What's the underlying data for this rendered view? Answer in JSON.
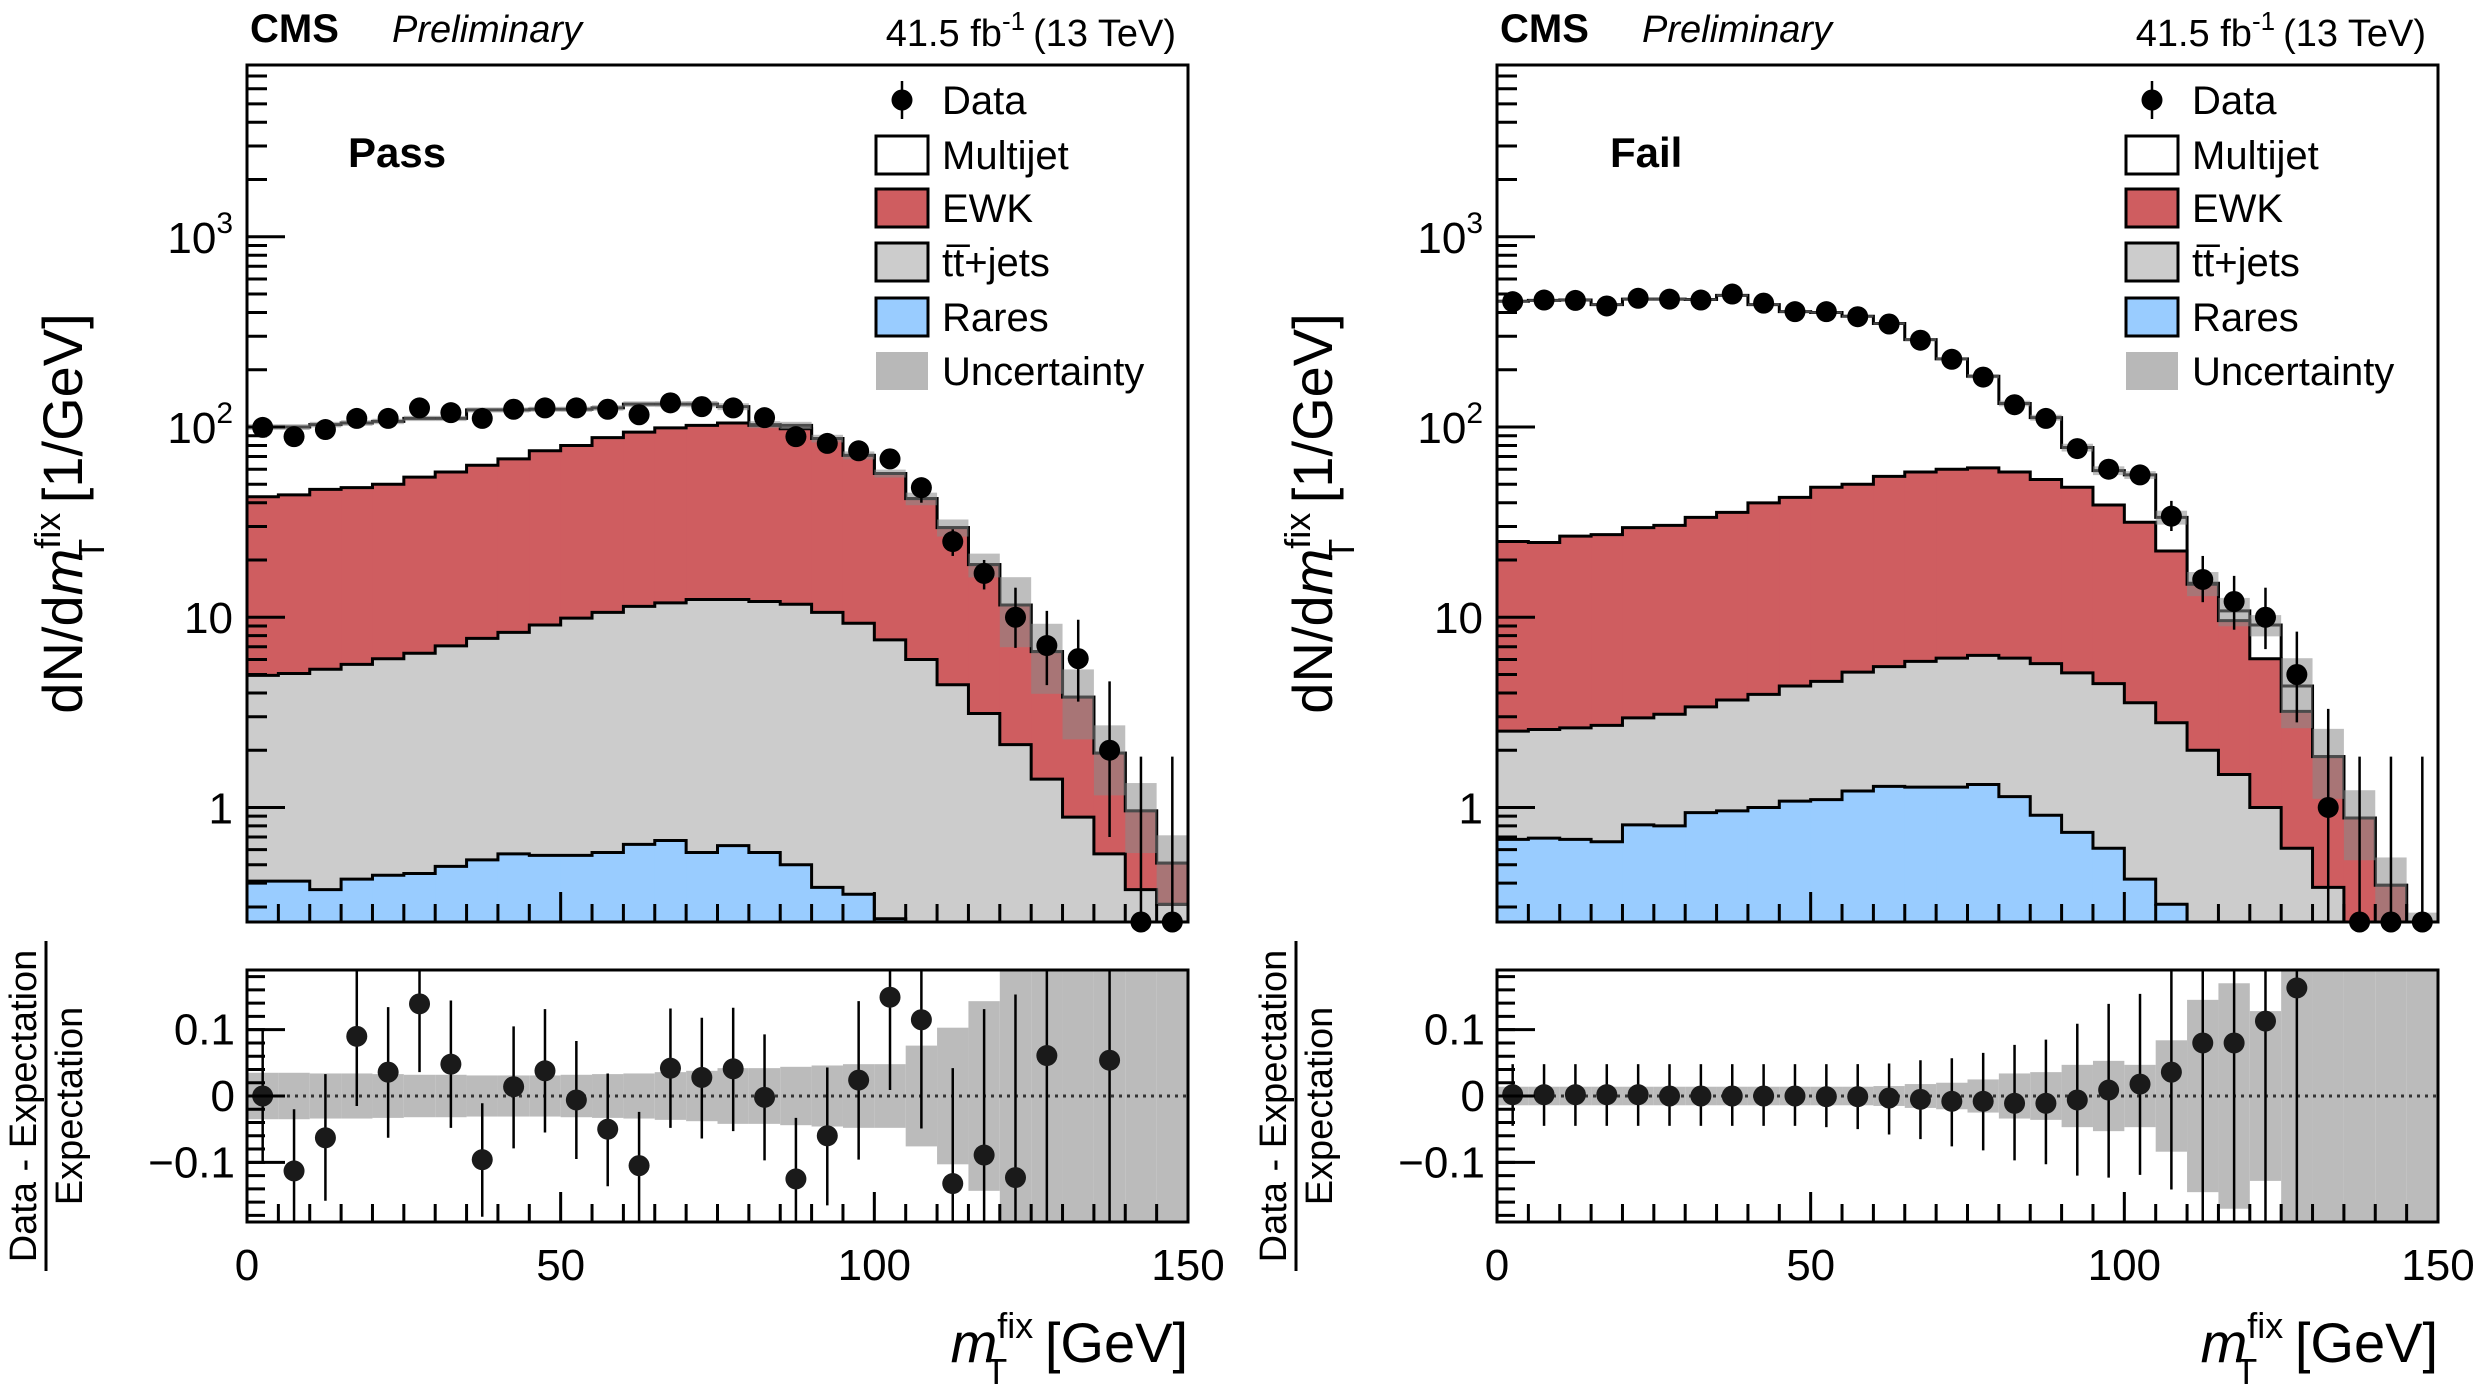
{
  "header": {
    "experiment": "CMS",
    "status": "Preliminary",
    "lumi_value": "41.5 fb",
    "lumi_exp": "-1",
    "energy": "(13 TeV)"
  },
  "colors": {
    "multijet": "#ffffff",
    "ewk": "#cf5d60",
    "ttbar": "#cccccc",
    "rares": "#99ccff",
    "uncertainty": "#888888",
    "data": "#000000"
  },
  "legend": [
    {
      "key": "data",
      "label": "Data",
      "style": "marker"
    },
    {
      "key": "multijet",
      "label": "Multijet",
      "style": "box"
    },
    {
      "key": "ewk",
      "label": "EWK",
      "style": "box"
    },
    {
      "key": "ttbar",
      "label": "tt̅+jets",
      "style": "box"
    },
    {
      "key": "rares",
      "label": "Rares",
      "style": "box"
    },
    {
      "key": "uncertainty",
      "label": "Uncertainty",
      "style": "band"
    }
  ],
  "axes": {
    "y_main_title_prefix": "dN/d",
    "y_main_title_var": "m",
    "y_main_title_sup": "fix",
    "y_main_title_sub": "T",
    "y_main_title_suffix": " [1/GeV]",
    "y_ratio_numerator": "Data - Expectation",
    "y_ratio_denominator": "Expectation",
    "x_title_var": "m",
    "x_title_sup": "fix",
    "x_title_sub": "T",
    "x_title_suffix": " [GeV]",
    "y_main_ticks": [
      {
        "value": 1,
        "label": "1"
      },
      {
        "value": 10,
        "label": "10"
      },
      {
        "value": 100,
        "label": "10",
        "exp": "2"
      },
      {
        "value": 1000,
        "label": "10",
        "exp": "3"
      }
    ],
    "y_ratio_ticks": [
      {
        "value": 0.1,
        "label": "0.1"
      },
      {
        "value": 0,
        "label": "0"
      },
      {
        "value": -0.1,
        "label": "−0.1"
      }
    ],
    "x_ticks": [
      {
        "value": 0,
        "label": "0"
      },
      {
        "value": 50,
        "label": "50"
      },
      {
        "value": 100,
        "label": "100"
      },
      {
        "value": 150,
        "label": "150"
      }
    ]
  },
  "chart_data": [
    {
      "type": "bar",
      "subtype": "stacked-histogram-with-ratio",
      "region": "Pass",
      "title": "CMS Preliminary, 41.5 fb^-1 (13 TeV)",
      "xlabel": "m_T^fix [GeV]",
      "ylabel": "dN/dm_T^fix [1/GeV]",
      "ratio_ylabel": "(Data - Expectation)/Expectation",
      "yscale": "log",
      "xlim": [
        0,
        150
      ],
      "ylim": [
        0.25,
        8000
      ],
      "ratio_ylim": [
        -0.19,
        0.19
      ],
      "bin_edges_start": 0,
      "bin_width": 5,
      "legend_position": "top-right",
      "stack_top_total": [
        100,
        100,
        103,
        105,
        107,
        111,
        111,
        123,
        123,
        124,
        124,
        126,
        132,
        132,
        132,
        128,
        103,
        102,
        87,
        71,
        57,
        42,
        29.6,
        18.9,
        11.6,
        6.6,
        3.8,
        1.93,
        0.96,
        0.51
      ],
      "stack_top_ewk": [
        43,
        44,
        47,
        48,
        50,
        54.5,
        58,
        63,
        68,
        75,
        80,
        88,
        94,
        99,
        102,
        105,
        102,
        98,
        87,
        71,
        57,
        42,
        29.6,
        18.9,
        11.6,
        6.6,
        3.8,
        1.93,
        0.96,
        0.51
      ],
      "stack_top_ttbar": [
        4.95,
        5.06,
        5.33,
        5.65,
        6.05,
        6.47,
        7.07,
        7.74,
        8.33,
        9.1,
        9.9,
        10.6,
        11.4,
        11.9,
        12.4,
        12.4,
        12.1,
        11.7,
        10.6,
        9.3,
        7.6,
        6.0,
        4.42,
        3.12,
        2.14,
        1.41,
        0.89,
        0.57,
        0.37,
        0.31
      ],
      "stack_top_rares": [
        0.41,
        0.41,
        0.37,
        0.42,
        0.44,
        0.45,
        0.49,
        0.53,
        0.57,
        0.56,
        0.56,
        0.58,
        0.64,
        0.67,
        0.58,
        0.63,
        0.58,
        0.5,
        0.38,
        0.35,
        0.26,
        0.2,
        0.2,
        0.2,
        0.2,
        0.2,
        0.2,
        0.2,
        0.2,
        0.2
      ],
      "data": [
        99.5,
        89,
        97,
        111,
        111,
        126,
        119,
        111,
        124,
        126,
        126,
        124,
        116,
        134,
        128,
        126,
        112,
        89,
        82,
        75,
        68,
        48,
        25,
        17,
        10,
        7.1,
        6.06,
        2.0,
        0,
        0
      ],
      "data_lo": [
        99.5,
        89,
        97,
        111,
        111,
        126,
        119,
        111,
        124,
        126,
        126,
        124,
        116,
        134,
        128,
        126,
        112,
        89,
        82,
        75,
        68,
        40,
        21,
        14,
        6.9,
        4.4,
        3.6,
        0.7,
        0,
        0
      ],
      "data_hi": [
        99.5,
        89,
        97,
        111,
        111,
        126,
        119,
        111,
        124,
        126,
        126,
        124,
        116,
        134,
        128,
        126,
        112,
        89,
        82,
        75,
        68,
        54,
        29,
        20,
        14.3,
        10.8,
        9.7,
        4.6,
        1.85,
        1.85
      ],
      "ratio": [
        0.0,
        -0.113,
        -0.063,
        0.09,
        0.036,
        0.139,
        0.048,
        -0.096,
        0.014,
        0.038,
        -0.006,
        -0.05,
        -0.105,
        0.042,
        0.028,
        0.041,
        -0.002,
        -0.125,
        -0.06,
        0.024,
        0.149,
        0.115,
        -0.132,
        -0.089,
        -0.123,
        0.061,
        null,
        0.054,
        null,
        null
      ],
      "ratio_lo": [
        -0.1,
        -0.19,
        -0.158,
        -0.015,
        -0.063,
        0.036,
        -0.048,
        -0.182,
        -0.079,
        -0.055,
        -0.095,
        -0.136,
        -0.19,
        -0.048,
        -0.064,
        -0.053,
        -0.097,
        -0.19,
        -0.165,
        -0.096,
        0.009,
        -0.049,
        -0.19,
        -0.19,
        -0.19,
        -0.19,
        null,
        -0.19,
        null,
        null
      ],
      "ratio_hi": [
        0.102,
        -0.02,
        0.033,
        0.189,
        0.134,
        0.189,
        0.144,
        -0.011,
        0.105,
        0.131,
        0.083,
        0.034,
        -0.024,
        0.132,
        0.118,
        0.133,
        0.093,
        -0.033,
        0.043,
        0.143,
        0.189,
        0.189,
        0.042,
        0.131,
        0.153,
        0.19,
        null,
        0.19,
        null,
        null
      ],
      "uncertainty_rel": [
        0.035,
        0.035,
        0.034,
        0.034,
        0.033,
        0.032,
        0.032,
        0.031,
        0.031,
        0.031,
        0.032,
        0.033,
        0.034,
        0.036,
        0.038,
        0.042,
        0.042,
        0.044,
        0.046,
        0.048,
        0.048,
        0.076,
        0.103,
        0.143,
        0.4,
        0.4,
        0.4,
        0.4,
        0.4,
        0.4
      ]
    },
    {
      "type": "bar",
      "subtype": "stacked-histogram-with-ratio",
      "region": "Fail",
      "title": "CMS Preliminary, 41.5 fb^-1 (13 TeV)",
      "xlabel": "m_T^fix [GeV]",
      "ylabel": "dN/dm_T^fix [1/GeV]",
      "ratio_ylabel": "(Data - Expectation)/Expectation",
      "yscale": "log",
      "xlim": [
        0,
        150
      ],
      "ylim": [
        0.25,
        8000
      ],
      "ratio_ylim": [
        -0.19,
        0.19
      ],
      "bin_edges_start": 0,
      "bin_width": 5,
      "legend_position": "top-right",
      "stack_top_total": [
        458,
        463,
        465,
        440,
        470,
        470,
        468,
        492,
        440,
        404,
        400,
        382,
        350,
        288,
        228,
        185,
        133,
        112,
        78,
        59,
        56,
        33.5,
        15.1,
        10.8,
        9.1,
        4.35,
        1.85,
        0.88,
        0.39,
        0.2
      ],
      "stack_top_ewk": [
        25,
        24.7,
        26.7,
        27.2,
        29.6,
        30.4,
        33.5,
        35.6,
        39.9,
        42.7,
        48.2,
        50,
        55,
        58,
        60,
        61,
        58,
        53,
        48.2,
        38.9,
        31.6,
        22.3,
        14.9,
        9.6,
        6.05,
        3.2,
        1.85,
        0.88,
        0.39,
        0.2
      ],
      "stack_top_ttbar": [
        2.52,
        2.57,
        2.62,
        2.7,
        2.96,
        3.09,
        3.38,
        3.67,
        3.93,
        4.35,
        4.6,
        5.15,
        5.5,
        5.86,
        6.1,
        6.3,
        6.1,
        5.7,
        5.1,
        4.48,
        3.55,
        2.79,
        2.0,
        1.49,
        1.0,
        0.61,
        0.38,
        0.2,
        0.2,
        0.2
      ],
      "stack_top_rares": [
        0.68,
        0.69,
        0.68,
        0.66,
        0.81,
        0.8,
        0.94,
        0.96,
        1.0,
        1.08,
        1.1,
        1.22,
        1.29,
        1.28,
        1.28,
        1.32,
        1.14,
        0.91,
        0.74,
        0.61,
        0.42,
        0.31,
        0.2,
        0.2,
        0.2,
        0.2,
        0.2,
        0.2,
        0.2,
        0.2
      ],
      "data": [
        456,
        465,
        463,
        433,
        475,
        470,
        465,
        500,
        448,
        404,
        404,
        380,
        348,
        286,
        227,
        183,
        131,
        111,
        77,
        60,
        56,
        34,
        15.8,
        12.1,
        10,
        5.0,
        1.0,
        0,
        0,
        0
      ],
      "data_lo": [
        456,
        465,
        463,
        433,
        475,
        470,
        465,
        500,
        448,
        404,
        404,
        380,
        348,
        286,
        227,
        183,
        131,
        111,
        77,
        60,
        56,
        28.4,
        12,
        8.6,
        6.8,
        2.8,
        0.25,
        0,
        0,
        0
      ],
      "data_hi": [
        456,
        465,
        463,
        433,
        475,
        470,
        465,
        500,
        448,
        404,
        404,
        380,
        348,
        286,
        227,
        183,
        131,
        111,
        77,
        60,
        56,
        40.9,
        21,
        16.5,
        14.3,
        8.4,
        3.3,
        1.85,
        1.85,
        1.85
      ],
      "ratio": [
        0.002,
        0.002,
        0.002,
        0.002,
        0.002,
        0.0,
        0.0,
        0.0,
        0.0,
        0.0,
        -0.001,
        -0.001,
        -0.003,
        -0.005,
        -0.008,
        -0.008,
        -0.011,
        -0.011,
        -0.006,
        0.009,
        0.018,
        0.036,
        0.08,
        0.08,
        0.113,
        0.163,
        null,
        null,
        null,
        null
      ],
      "ratio_lo": [
        -0.045,
        -0.045,
        -0.045,
        -0.045,
        -0.045,
        -0.045,
        -0.045,
        -0.045,
        -0.045,
        -0.045,
        -0.047,
        -0.05,
        -0.058,
        -0.065,
        -0.076,
        -0.082,
        -0.097,
        -0.103,
        -0.12,
        -0.123,
        -0.119,
        -0.141,
        -0.19,
        -0.19,
        -0.19,
        -0.19,
        null,
        null,
        null,
        null
      ],
      "ratio_hi": [
        0.048,
        0.048,
        0.048,
        0.048,
        0.048,
        0.048,
        0.048,
        0.048,
        0.048,
        0.048,
        0.048,
        0.048,
        0.049,
        0.054,
        0.057,
        0.065,
        0.077,
        0.085,
        0.109,
        0.139,
        0.154,
        0.19,
        0.19,
        0.19,
        0.19,
        0.19,
        null,
        null,
        null,
        null
      ],
      "uncertainty_rel": [
        0.014,
        0.014,
        0.014,
        0.014,
        0.014,
        0.014,
        0.014,
        0.014,
        0.014,
        0.014,
        0.014,
        0.014,
        0.015,
        0.018,
        0.02,
        0.025,
        0.034,
        0.036,
        0.047,
        0.053,
        0.047,
        0.084,
        0.145,
        0.17,
        0.128,
        0.4,
        0.4,
        0.4,
        0.4,
        0.4
      ]
    }
  ]
}
